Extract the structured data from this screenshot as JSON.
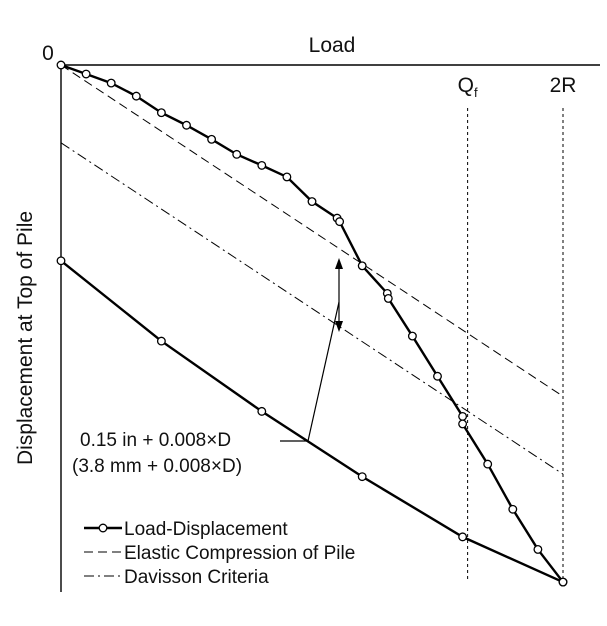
{
  "chart_data": {
    "type": "line",
    "xlabel": "Load",
    "ylabel": "Displacement at Top of Pile",
    "origin_label": "0",
    "x_markers": [
      {
        "label": "Q",
        "subscript": "f",
        "x": 8.1
      },
      {
        "label": "2R",
        "subscript": "",
        "x": 10.0
      }
    ],
    "xlim": [
      0,
      11
    ],
    "ylim": [
      0,
      10
    ],
    "series": [
      {
        "name": "Load-Displacement",
        "style": "solid-with-circles",
        "points": [
          [
            0.0,
            0.0
          ],
          [
            0.5,
            0.18
          ],
          [
            1.0,
            0.36
          ],
          [
            1.5,
            0.62
          ],
          [
            2.0,
            0.95
          ],
          [
            2.5,
            1.2
          ],
          [
            3.0,
            1.48
          ],
          [
            3.5,
            1.78
          ],
          [
            4.0,
            2.0
          ],
          [
            4.5,
            2.23
          ],
          [
            5.0,
            2.72
          ],
          [
            5.5,
            3.05
          ],
          [
            5.55,
            3.12
          ],
          [
            6.0,
            4.0
          ],
          [
            6.5,
            4.55
          ],
          [
            6.52,
            4.65
          ],
          [
            7.0,
            5.4
          ],
          [
            7.5,
            6.2
          ],
          [
            8.0,
            7.0
          ],
          [
            8.0,
            7.15
          ],
          [
            8.5,
            7.95
          ],
          [
            9.0,
            8.85
          ],
          [
            9.5,
            9.65
          ],
          [
            10.0,
            10.3
          ]
        ]
      },
      {
        "name": "Elastic Compression of Pile",
        "style": "dashed",
        "points": [
          [
            0.0,
            0.0
          ],
          [
            10.0,
            6.6
          ]
        ]
      },
      {
        "name": "Davisson Criteria",
        "style": "dash-dot",
        "points": [
          [
            0.0,
            1.55
          ],
          [
            10.0,
            8.15
          ]
        ]
      },
      {
        "name": "",
        "style": "solid-with-circles",
        "points": [
          [
            0.0,
            3.9
          ],
          [
            2.0,
            5.5
          ],
          [
            4.0,
            6.9
          ],
          [
            6.0,
            8.2
          ],
          [
            8.0,
            9.4
          ],
          [
            10.0,
            10.3
          ]
        ]
      }
    ],
    "annotation": {
      "line1": "0.15 in + 0.008×D",
      "line2": "(3.8 mm + 0.008×D)"
    },
    "legend_position": "bottom-left"
  }
}
